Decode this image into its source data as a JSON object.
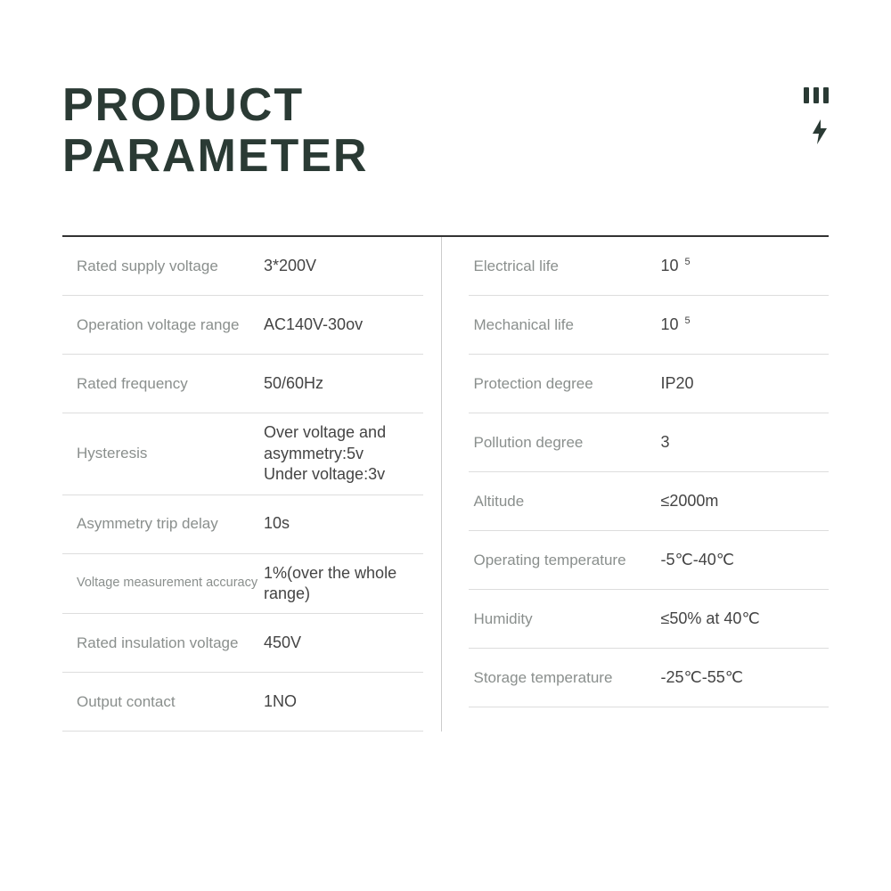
{
  "title_line1": "PRODUCT",
  "title_line2": "PARAMETER",
  "colors": {
    "title": "#2a3a34",
    "label": "#8a8f8d",
    "value": "#444444",
    "border_top": "#333333",
    "border_row": "#dddddd",
    "divider": "#cccccc",
    "background": "#ffffff"
  },
  "typography": {
    "title_fontsize": 52,
    "title_weight": 800,
    "label_fontsize": 17,
    "value_fontsize": 18
  },
  "left": [
    {
      "label": "Rated supply voltage",
      "value": "3*200V"
    },
    {
      "label": "Operation voltage range",
      "value": "AC140V-30ov"
    },
    {
      "label": "Rated frequency",
      "value": "50/60Hz"
    },
    {
      "label": "Hysteresis",
      "value": "Over voltage and asymmetry:5v\nUnder voltage:3v"
    },
    {
      "label": "Asymmetry trip delay",
      "value": "10s"
    },
    {
      "label": "Voltage measurement accuracy",
      "value": "1%(over the whole range)",
      "small_label": true
    },
    {
      "label": "Rated insulation voltage",
      "value": "450V"
    },
    {
      "label": "Output contact",
      "value": "1NO"
    }
  ],
  "right": [
    {
      "label": "Electrical life",
      "value_base": "10",
      "value_sup": "5"
    },
    {
      "label": "Mechanical life",
      "value_base": "10",
      "value_sup": "5"
    },
    {
      "label": "Protection degree",
      "value": "IP20"
    },
    {
      "label": "Pollution degree",
      "value": "3"
    },
    {
      "label": "Altitude",
      "value": "≤2000m"
    },
    {
      "label": "Operating temperature",
      "value": "-5℃-40℃"
    },
    {
      "label": "Humidity",
      "value": "≤50% at 40℃"
    },
    {
      "label": "Storage temperature",
      "value": "-25℃-55℃"
    }
  ]
}
